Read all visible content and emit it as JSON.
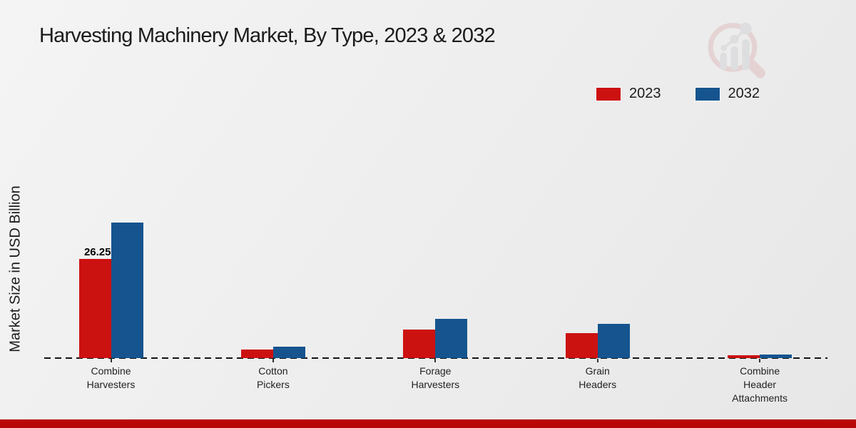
{
  "chart_data": {
    "type": "bar",
    "title": "Harvesting Machinery Market, By Type, 2023 & 2032",
    "ylabel": "Market Size in USD Billion",
    "xlabel": "",
    "categories": [
      "Combine\nHarvesters",
      "Cotton\nPickers",
      "Forage\nHarvesters",
      "Grain\nHeaders",
      "Combine\nHeader\nAttachments"
    ],
    "category_slugs": [
      "combine-harvesters",
      "cotton-pickers",
      "forage-harvesters",
      "grain-headers",
      "combine-header-attachments"
    ],
    "series": [
      {
        "name": "2023",
        "color": "#cc1111",
        "values": [
          26.25,
          2.3,
          7.5,
          6.7,
          0.7
        ]
      },
      {
        "name": "2032",
        "color": "#15548e",
        "values": [
          35.9,
          3.1,
          10.4,
          9.0,
          1.0
        ]
      }
    ],
    "annotations": [
      {
        "text": "26.25",
        "series_index": 0,
        "category_index": 0
      }
    ],
    "ylim": [
      0,
      40
    ],
    "grid": false,
    "legend_position": "top-right",
    "baseline_style": "dashed"
  },
  "branding": {
    "watermark_icon": "magnifier-growth-chart-logo",
    "watermark_ring_color": "#c4545e",
    "watermark_bar_color": "#9aa0a8",
    "footer_strip_color": "#b90707"
  },
  "colors": {
    "background_start": "#f4f4f4",
    "background_end": "#e7e7e7",
    "title_text": "#1c1c1c",
    "axis_text": "#222222",
    "dashed_line": "#141414"
  }
}
